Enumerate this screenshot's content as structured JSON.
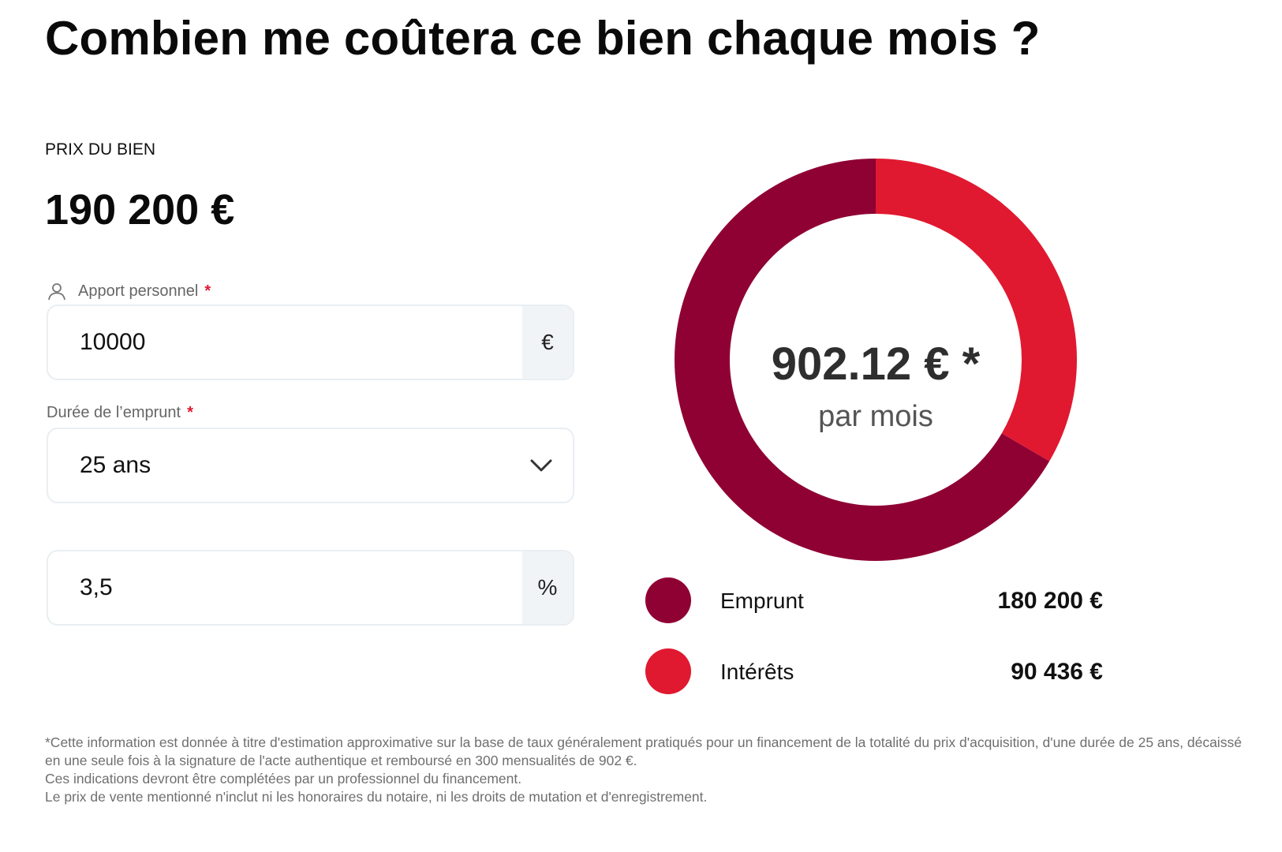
{
  "title": "Combien me coûtera ce bien chaque mois ?",
  "price": {
    "label": "PRIX DU BIEN",
    "value": "190 200 €"
  },
  "form": {
    "apport": {
      "label": "Apport personnel",
      "required_mark": "*",
      "value": "10000",
      "suffix": "€",
      "icon": "user-icon"
    },
    "duree": {
      "label": "Durée de l’emprunt",
      "required_mark": "*",
      "selected": "25 ans",
      "icon": "chevron-down-icon"
    },
    "taux": {
      "value": "3,5",
      "suffix": "%"
    }
  },
  "chart_data": {
    "type": "pie",
    "donut": true,
    "categories": [
      "Emprunt",
      "Intérêts"
    ],
    "values": [
      180200,
      90436
    ],
    "colors": [
      "#8f0033",
      "#e01930"
    ],
    "center_value": "902.12 € *",
    "center_unit": "par mois"
  },
  "legend": [
    {
      "name": "Emprunt",
      "amount": "180 200 €",
      "color": "#8f0033"
    },
    {
      "name": "Intérêts",
      "amount": "90 436 €",
      "color": "#e01930"
    }
  ],
  "disclaimer": [
    "*Cette information est donnée à titre d'estimation approximative sur la base de taux généralement pratiqués pour un financement de la totalité du prix d'acquisition, d'une durée de 25 ans, décaissé en une seule fois à la signature de l'acte authentique et remboursé en 300 mensualités de 902 €.",
    "Ces indications devront être complétées par un professionnel du financement.",
    "Le prix de vente mentionné n'inclut ni les honoraires du notaire, ni les droits de mutation et d'enregistrement."
  ]
}
